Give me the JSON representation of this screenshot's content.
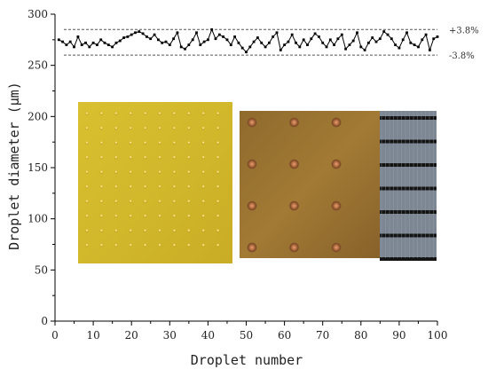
{
  "chart_data": {
    "type": "line",
    "xlabel": "Droplet number",
    "ylabel": "Droplet diameter (μm)",
    "xlim": [
      0,
      100
    ],
    "ylim": [
      0,
      300
    ],
    "x_ticks": [
      0,
      10,
      20,
      30,
      40,
      50,
      60,
      70,
      80,
      90,
      100
    ],
    "y_ticks": [
      0,
      50,
      100,
      150,
      200,
      250,
      300
    ],
    "grid": false,
    "series": [
      {
        "marker": "square",
        "color": "#000000",
        "x": [
          1,
          2,
          3,
          4,
          5,
          6,
          7,
          8,
          9,
          10,
          11,
          12,
          13,
          14,
          15,
          16,
          17,
          18,
          19,
          20,
          21,
          22,
          23,
          24,
          25,
          26,
          27,
          28,
          29,
          30,
          31,
          32,
          33,
          34,
          35,
          36,
          37,
          38,
          39,
          40,
          41,
          42,
          43,
          44,
          45,
          46,
          47,
          48,
          49,
          50,
          51,
          52,
          53,
          54,
          55,
          56,
          57,
          58,
          59,
          60,
          61,
          62,
          63,
          64,
          65,
          66,
          67,
          68,
          69,
          70,
          71,
          72,
          73,
          74,
          75,
          76,
          77,
          78,
          79,
          80,
          81,
          82,
          83,
          84,
          85,
          86,
          87,
          88,
          89,
          90,
          91,
          92,
          93,
          94,
          95,
          96,
          97,
          98,
          99,
          100
        ],
        "values": [
          275,
          273,
          270,
          273,
          268,
          278,
          270,
          272,
          268,
          272,
          270,
          275,
          272,
          270,
          268,
          272,
          274,
          277,
          278,
          280,
          282,
          283,
          281,
          278,
          276,
          280,
          275,
          272,
          273,
          270,
          276,
          282,
          268,
          266,
          270,
          275,
          282,
          270,
          273,
          275,
          285,
          276,
          280,
          278,
          275,
          270,
          278,
          272,
          267,
          263,
          268,
          273,
          277,
          272,
          268,
          272,
          278,
          282,
          265,
          270,
          273,
          280,
          272,
          268,
          275,
          270,
          276,
          281,
          278,
          272,
          268,
          275,
          270,
          276,
          280,
          266,
          270,
          274,
          282,
          268,
          265,
          272,
          277,
          273,
          276,
          283,
          280,
          276,
          270,
          267,
          275,
          282,
          272,
          270,
          268,
          275,
          280,
          265,
          276,
          278
        ]
      }
    ],
    "reference_lines": [
      {
        "y": 285,
        "style": "dashed",
        "label": "+3.8%"
      },
      {
        "y": 260,
        "style": "dashed",
        "label": "-3.8%"
      }
    ],
    "inset_images": [
      "droplet-array-yellow-photo",
      "droplet-array-brown-photo",
      "striped-metal-photo"
    ]
  }
}
